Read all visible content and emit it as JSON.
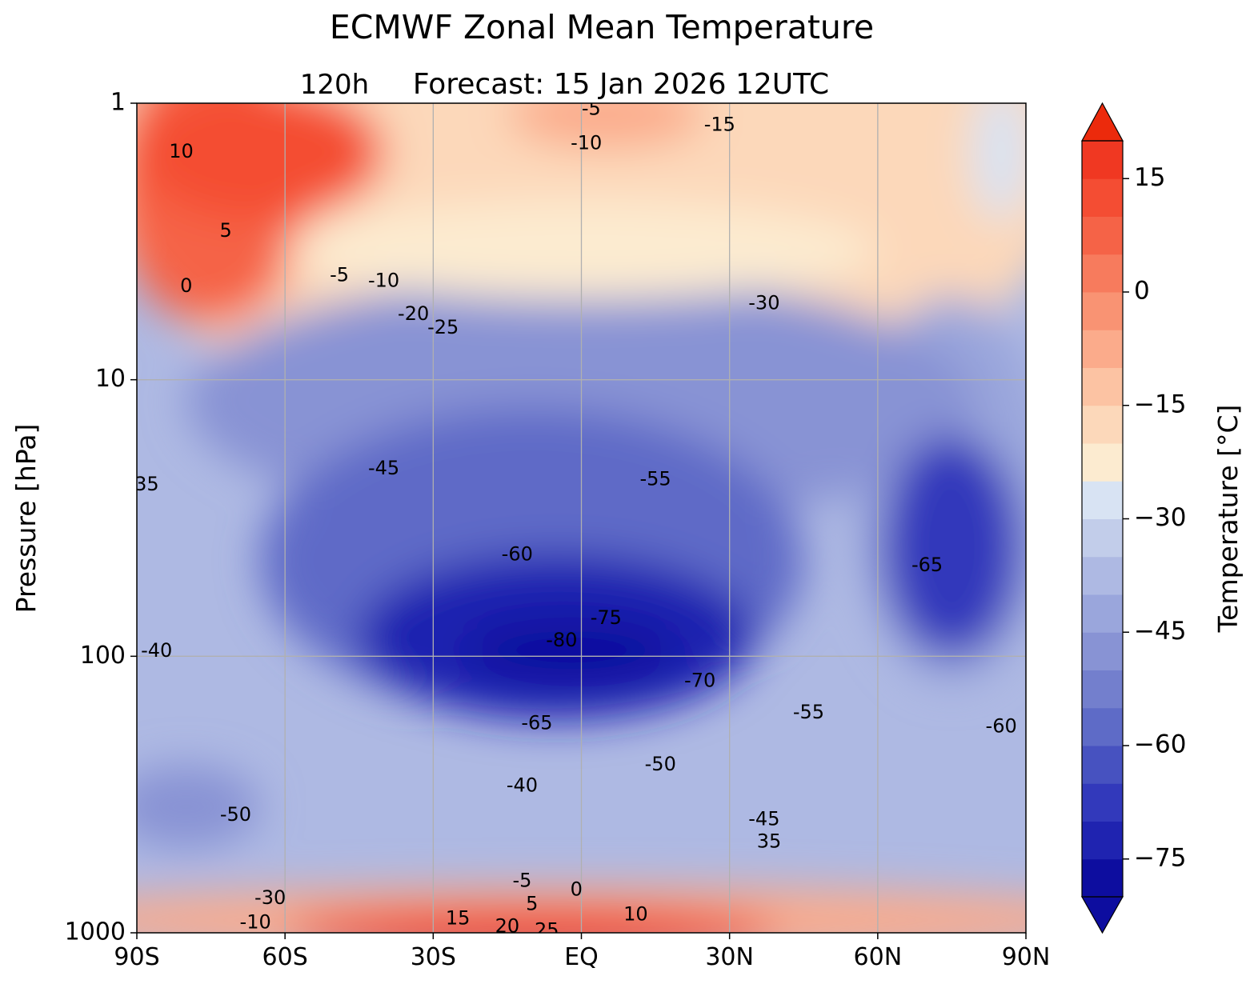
{
  "chart_data": {
    "type": "heatmap",
    "title": "ECMWF Zonal Mean Temperature",
    "subtitle_left": "120h",
    "subtitle_main": "Forecast:  15 Jan 2026  12UTC",
    "xlabel": "",
    "ylabel": "Pressure [hPa]",
    "x_ticks": [
      {
        "value": -90,
        "label": "90S"
      },
      {
        "value": -60,
        "label": "60S"
      },
      {
        "value": -30,
        "label": "30S"
      },
      {
        "value": 0,
        "label": "EQ"
      },
      {
        "value": 30,
        "label": "30N"
      },
      {
        "value": 60,
        "label": "60N"
      },
      {
        "value": 90,
        "label": "90N"
      }
    ],
    "y_ticks": [
      {
        "value": 1,
        "label": "1"
      },
      {
        "value": 10,
        "label": "10"
      },
      {
        "value": 100,
        "label": "100"
      },
      {
        "value": 1000,
        "label": "1000"
      }
    ],
    "xlim": [
      -90,
      90
    ],
    "ylim": [
      1000,
      1
    ],
    "y_scale": "log",
    "grid": true,
    "colorbar": {
      "label": "Temperature [°C]",
      "vmin": -80,
      "vmax": 20,
      "step": 5,
      "ticks": [
        {
          "value": 15,
          "label": "15"
        },
        {
          "value": 0,
          "label": "0"
        },
        {
          "value": -15,
          "label": "−15"
        },
        {
          "value": -30,
          "label": "−30"
        },
        {
          "value": -45,
          "label": "−45"
        },
        {
          "value": -60,
          "label": "−60"
        },
        {
          "value": -75,
          "label": "−75"
        }
      ],
      "colors": [
        "#0d0d9f",
        "#1f23b0",
        "#3239bb",
        "#4752c0",
        "#5e6bc7",
        "#737fcd",
        "#8893d4",
        "#9aa6dc",
        "#aeb9e3",
        "#c2cdea",
        "#d8e3f3",
        "#fcebd0",
        "#fcd8ba",
        "#fcc3a3",
        "#fbab8b",
        "#f99373",
        "#f77b5d",
        "#f56347",
        "#f44d33",
        "#f03822",
        "#ec2a0c"
      ]
    },
    "contour_labels": [
      {
        "lat": -81,
        "p": 1.5,
        "text": "10"
      },
      {
        "lat": -72,
        "p": 2.9,
        "text": "5"
      },
      {
        "lat": -80,
        "p": 4.6,
        "text": "0"
      },
      {
        "lat": -49,
        "p": 4.2,
        "text": "-5"
      },
      {
        "lat": -40,
        "p": 4.4,
        "text": "-10"
      },
      {
        "lat": -34,
        "p": 5.8,
        "text": "-20"
      },
      {
        "lat": -28,
        "p": 6.5,
        "text": "-25"
      },
      {
        "lat": 2,
        "p": 1.05,
        "text": "-5"
      },
      {
        "lat": 1,
        "p": 1.4,
        "text": "-10"
      },
      {
        "lat": 28,
        "p": 1.2,
        "text": "-15"
      },
      {
        "lat": 37,
        "p": 5.3,
        "text": "-30"
      },
      {
        "lat": -88,
        "p": 24,
        "text": "35"
      },
      {
        "lat": -40,
        "p": 21,
        "text": "-45"
      },
      {
        "lat": 15,
        "p": 23,
        "text": "-55"
      },
      {
        "lat": -13,
        "p": 43,
        "text": "-60"
      },
      {
        "lat": 70,
        "p": 47,
        "text": "-65"
      },
      {
        "lat": 5,
        "p": 73,
        "text": "-75"
      },
      {
        "lat": -4,
        "p": 88,
        "text": "-80"
      },
      {
        "lat": 24,
        "p": 123,
        "text": "-70"
      },
      {
        "lat": -9,
        "p": 175,
        "text": "-65"
      },
      {
        "lat": -86,
        "p": 96,
        "text": "-40"
      },
      {
        "lat": 46,
        "p": 160,
        "text": "-55"
      },
      {
        "lat": 85,
        "p": 180,
        "text": "-60"
      },
      {
        "lat": 16,
        "p": 247,
        "text": "-50"
      },
      {
        "lat": -12,
        "p": 295,
        "text": "-40"
      },
      {
        "lat": -70,
        "p": 375,
        "text": "-50"
      },
      {
        "lat": 37,
        "p": 390,
        "text": "-45"
      },
      {
        "lat": 38,
        "p": 470,
        "text": "35"
      },
      {
        "lat": -12,
        "p": 650,
        "text": "-5"
      },
      {
        "lat": -1,
        "p": 700,
        "text": "0"
      },
      {
        "lat": -10,
        "p": 790,
        "text": "5"
      },
      {
        "lat": 11,
        "p": 860,
        "text": "10"
      },
      {
        "lat": -25,
        "p": 890,
        "text": "15"
      },
      {
        "lat": -15,
        "p": 950,
        "text": "20"
      },
      {
        "lat": -7,
        "p": 985,
        "text": "25"
      },
      {
        "lat": -63,
        "p": 750,
        "text": "-30"
      },
      {
        "lat": -66,
        "p": 920,
        "text": "-10"
      }
    ]
  }
}
